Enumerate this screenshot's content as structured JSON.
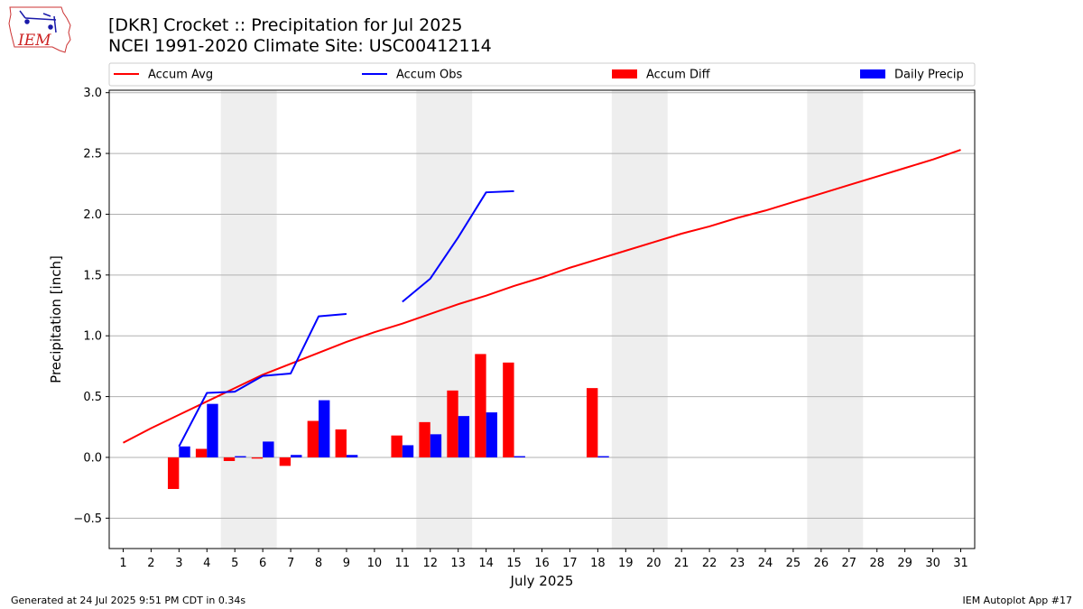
{
  "header": {
    "title_line1": "[DKR] Crocket :: Precipitation for Jul 2025",
    "title_line2": "NCEI 1991-2020 Climate Site: USC00412114",
    "logo_text": "IEM"
  },
  "footer": {
    "left": "Generated at 24 Jul 2025 9:51 PM CDT in 0.34s",
    "right": "IEM Autoplot App #17"
  },
  "chart_data": {
    "type": "bar",
    "xlabel": "July 2025",
    "ylabel": "Precipitation [inch]",
    "xlim": [
      0.5,
      31.5
    ],
    "ylim": [
      -0.75,
      3.02
    ],
    "yticks": [
      -0.5,
      0.0,
      0.5,
      1.0,
      1.5,
      2.0,
      2.5,
      3.0
    ],
    "ytick_labels": [
      "−0.5",
      "0.0",
      "0.5",
      "1.0",
      "1.5",
      "2.0",
      "2.5",
      "3.0"
    ],
    "grid": "horizontal",
    "legend_position": "top",
    "x": [
      1,
      2,
      3,
      4,
      5,
      6,
      7,
      8,
      9,
      10,
      11,
      12,
      13,
      14,
      15,
      16,
      17,
      18,
      19,
      20,
      21,
      22,
      23,
      24,
      25,
      26,
      27,
      28,
      29,
      30,
      31
    ],
    "x_labels": [
      "1",
      "2",
      "3",
      "4",
      "5",
      "6",
      "7",
      "8",
      "9",
      "10",
      "11",
      "12",
      "13",
      "14",
      "15",
      "16",
      "17",
      "18",
      "19",
      "20",
      "21",
      "22",
      "23",
      "24",
      "25",
      "26",
      "27",
      "28",
      "29",
      "30",
      "31"
    ],
    "weekend_spans": [
      [
        4.5,
        6.5
      ],
      [
        11.5,
        13.5
      ],
      [
        18.5,
        20.5
      ],
      [
        25.5,
        27.5
      ]
    ],
    "colors": {
      "accum_avg": "#ff0000",
      "accum_obs": "#0000ff",
      "accum_diff": "#ff0000",
      "daily_precip": "#0000ff",
      "weekend": "#eeeeee",
      "grid": "#b0b0b0"
    },
    "series": [
      {
        "name": "Accum Avg",
        "kind": "line",
        "values": [
          0.12,
          0.24,
          0.35,
          0.46,
          0.57,
          0.68,
          0.77,
          0.86,
          0.95,
          1.03,
          1.1,
          1.18,
          1.26,
          1.33,
          1.41,
          1.48,
          1.56,
          1.63,
          1.7,
          1.77,
          1.84,
          1.9,
          1.97,
          2.03,
          2.1,
          2.17,
          2.24,
          2.31,
          2.38,
          2.45,
          2.53
        ]
      },
      {
        "name": "Accum Obs",
        "kind": "line",
        "values": [
          null,
          null,
          0.09,
          0.53,
          0.54,
          0.67,
          0.69,
          1.16,
          1.18,
          null,
          1.28,
          1.47,
          1.81,
          2.18,
          2.19,
          null,
          null,
          null,
          null,
          null,
          null,
          null,
          null,
          null,
          null,
          null,
          null,
          null,
          null,
          null,
          null
        ]
      },
      {
        "name": "Accum Diff",
        "kind": "bar",
        "values": [
          null,
          null,
          -0.26,
          0.07,
          -0.03,
          -0.01,
          -0.07,
          0.3,
          0.23,
          null,
          0.18,
          0.29,
          0.55,
          0.85,
          0.78,
          null,
          null,
          0.57,
          null,
          null,
          null,
          null,
          null,
          null,
          null,
          null,
          null,
          null,
          null,
          null,
          null
        ]
      },
      {
        "name": "Daily Precip",
        "kind": "bar",
        "values": [
          null,
          null,
          0.09,
          0.44,
          0.01,
          0.13,
          0.02,
          0.47,
          0.02,
          null,
          0.1,
          0.19,
          0.34,
          0.37,
          0.01,
          null,
          null,
          0.01,
          null,
          null,
          null,
          null,
          null,
          null,
          null,
          null,
          null,
          null,
          null,
          null,
          null
        ]
      }
    ]
  }
}
